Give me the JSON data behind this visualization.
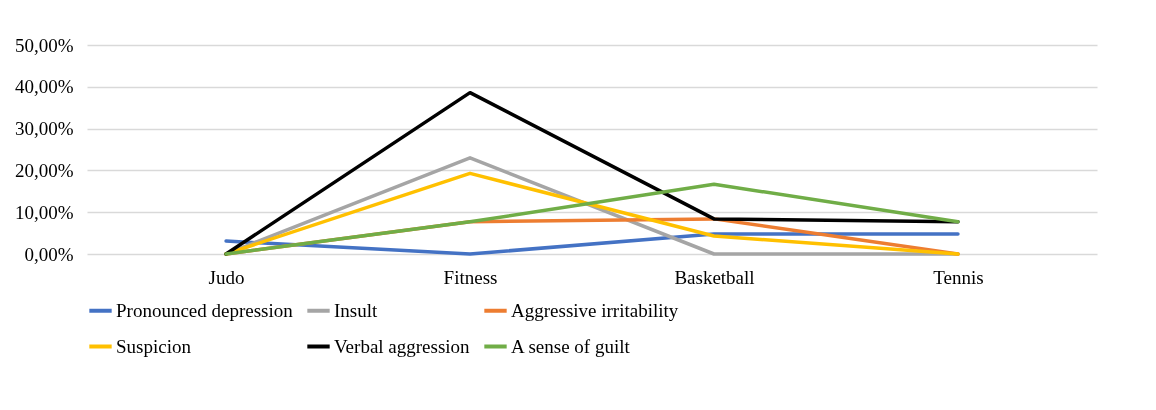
{
  "chart_data": {
    "type": "line",
    "categories": [
      "Judo",
      "Fitness",
      "Basketball",
      "Tennis"
    ],
    "series": [
      {
        "name": "Pronounced depression",
        "color": "#4472c4",
        "values": [
          3.1,
          0,
          4.8,
          4.8
        ]
      },
      {
        "name": "Insult",
        "color": "#a5a5a5",
        "values": [
          0,
          23,
          0,
          0
        ]
      },
      {
        "name": "Aggressive irritability",
        "color": "#ed7d31",
        "values": [
          0,
          7.7,
          8.4,
          0
        ]
      },
      {
        "name": "Suspicion",
        "color": "#ffc000",
        "values": [
          0,
          19.3,
          4.3,
          0
        ]
      },
      {
        "name": "Verbal aggression",
        "color": "#000000",
        "values": [
          0,
          38.6,
          8.4,
          7.7
        ]
      },
      {
        "name": "A sense of guilt",
        "color": "#70ad47",
        "values": [
          0,
          7.7,
          16.7,
          7.7
        ]
      }
    ],
    "ylim": [
      0,
      50
    ],
    "yticks": [
      {
        "value": 0,
        "label": "0,00%"
      },
      {
        "value": 10,
        "label": "10,00%"
      },
      {
        "value": 20,
        "label": "20,00%"
      },
      {
        "value": 30,
        "label": "30,00%"
      },
      {
        "value": 40,
        "label": "40,00%"
      },
      {
        "value": 50,
        "label": "50,00%"
      }
    ],
    "grid": "y",
    "legend": "bottom",
    "marker": "none",
    "line_style": "solid"
  }
}
